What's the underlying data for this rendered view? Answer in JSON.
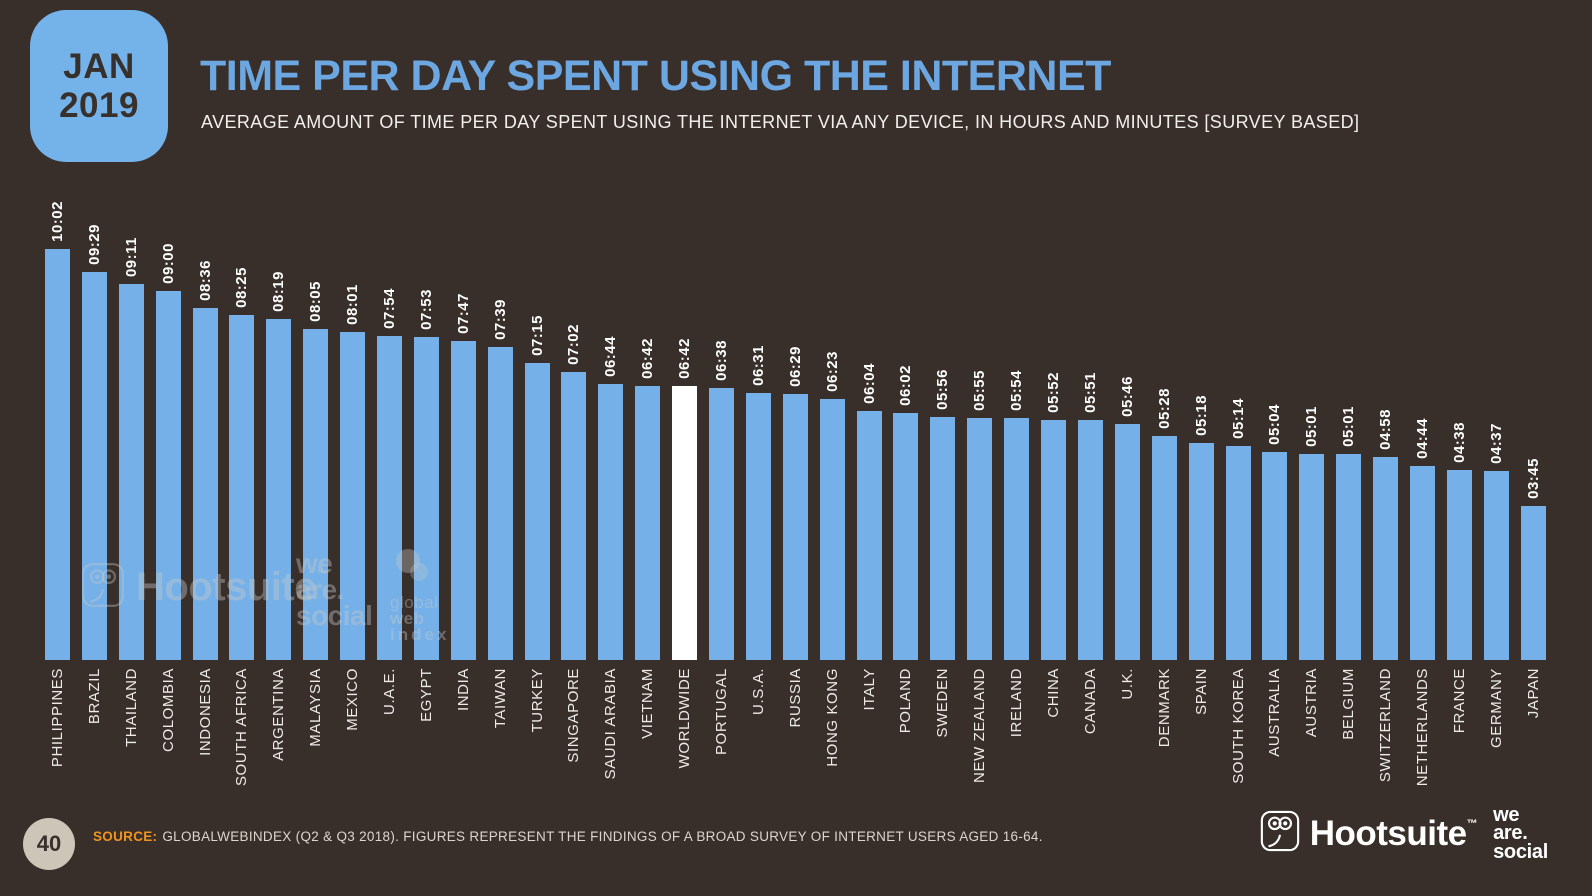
{
  "badge": {
    "month": "JAN",
    "year": "2019"
  },
  "header": {
    "title": "TIME PER DAY SPENT USING THE INTERNET",
    "subtitle": "AVERAGE AMOUNT OF TIME PER DAY SPENT USING THE INTERNET VIA ANY DEVICE, IN HOURS AND MINUTES [SURVEY BASED]"
  },
  "chart_data": {
    "type": "bar",
    "title": "TIME PER DAY SPENT USING THE INTERNET",
    "unit": "hours:minutes per day",
    "categories": [
      "PHILIPPINES",
      "BRAZIL",
      "THAILAND",
      "COLOMBIA",
      "INDONESIA",
      "SOUTH AFRICA",
      "ARGENTINA",
      "MALAYSIA",
      "MEXICO",
      "U.A.E.",
      "EGYPT",
      "INDIA",
      "TAIWAN",
      "TURKEY",
      "SINGAPORE",
      "SAUDI ARABIA",
      "VIETNAM",
      "WORLDWIDE",
      "PORTUGAL",
      "U.S.A.",
      "RUSSIA",
      "HONG KONG",
      "ITALY",
      "POLAND",
      "SWEDEN",
      "NEW ZEALAND",
      "IRELAND",
      "CHINA",
      "CANADA",
      "U.K.",
      "DENMARK",
      "SPAIN",
      "SOUTH KOREA",
      "AUSTRALIA",
      "AUSTRIA",
      "BELGIUM",
      "SWITZERLAND",
      "NETHERLANDS",
      "FRANCE",
      "GERMANY",
      "JAPAN"
    ],
    "values": [
      "10:02",
      "09:29",
      "09:11",
      "09:00",
      "08:36",
      "08:25",
      "08:19",
      "08:05",
      "08:01",
      "07:54",
      "07:53",
      "07:47",
      "07:39",
      "07:15",
      "07:02",
      "06:44",
      "06:42",
      "06:42",
      "06:38",
      "06:31",
      "06:29",
      "06:23",
      "06:04",
      "06:02",
      "05:56",
      "05:55",
      "05:54",
      "05:52",
      "05:51",
      "05:46",
      "05:28",
      "05:18",
      "05:14",
      "05:04",
      "05:01",
      "05:01",
      "04:58",
      "04:44",
      "04:38",
      "04:37",
      "03:45"
    ],
    "values_minutes": [
      602,
      569,
      551,
      540,
      516,
      505,
      499,
      485,
      481,
      474,
      473,
      467,
      459,
      435,
      422,
      404,
      402,
      402,
      398,
      391,
      389,
      383,
      364,
      362,
      356,
      355,
      354,
      352,
      351,
      346,
      328,
      318,
      314,
      304,
      301,
      301,
      298,
      284,
      278,
      277,
      225
    ],
    "ylim_minutes": [
      0,
      602
    ],
    "highlight_category": "WORLDWIDE",
    "bar_color": "#75B1E8",
    "highlight_color": "#FFFFFF",
    "grid": false,
    "legend": false,
    "value_label_position": "above-bar-rotated-90",
    "category_label_position": "below-bar-rotated-90"
  },
  "watermarks": {
    "hootsuite": "Hootsuite",
    "hootsuite_tm": "™",
    "we_are_social": [
      "we",
      "are.",
      "social"
    ],
    "gwi": [
      "global",
      "web",
      "index"
    ]
  },
  "footer": {
    "page_number": "40",
    "source_label": "SOURCE:",
    "source_text": "GLOBALWEBINDEX (Q2 & Q3 2018). FIGURES REPRESENT THE FINDINGS OF A BROAD SURVEY OF INTERNET USERS AGED 16-64.",
    "hootsuite_logo": "Hootsuite",
    "hootsuite_tm": "™",
    "we_are_social_logo": [
      "we",
      "are.",
      "social"
    ]
  },
  "colors": {
    "background": "#382F2A",
    "bar": "#75B1E8",
    "highlight_bar": "#FFFFFF",
    "title": "#6CA7E2",
    "badge": "#74B2EA",
    "source_accent": "#F0941F",
    "page_circle": "#CDC5B8"
  }
}
